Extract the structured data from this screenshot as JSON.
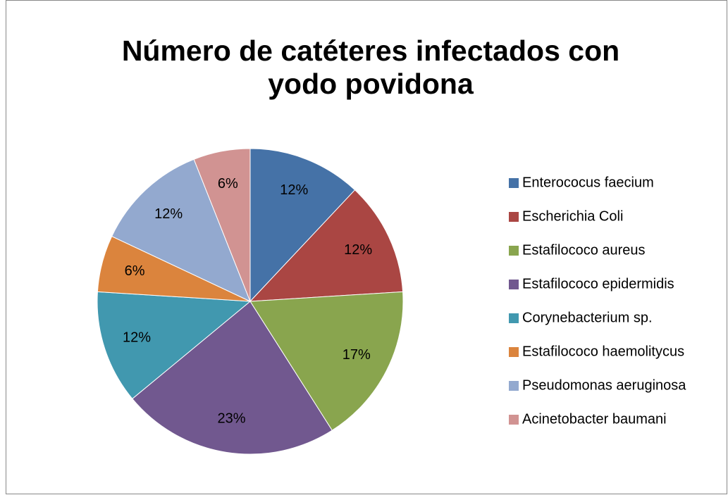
{
  "chart_data": {
    "type": "pie",
    "title": "Número de catéteres infectados con yodo povidona",
    "categories": [
      "Enterococus faecium",
      "Escherichia Coli",
      "Estafilococo aureus",
      "Estafilococo epidermidis",
      "Corynebacterium sp.",
      "Estafilococo haemolitycus",
      "Pseudomonas aeruginosa",
      "Acinetobacter baumani"
    ],
    "values": [
      12,
      12,
      17,
      23,
      12,
      6,
      12,
      6
    ],
    "value_labels": [
      "12%",
      "12%",
      "17%",
      "23%",
      "12%",
      "6%",
      "12%",
      "6%"
    ],
    "colors": [
      "#4572a7",
      "#aa4643",
      "#89a54e",
      "#71588f",
      "#4198af",
      "#db843d",
      "#93a9cf",
      "#d19392"
    ],
    "legend": "right"
  }
}
